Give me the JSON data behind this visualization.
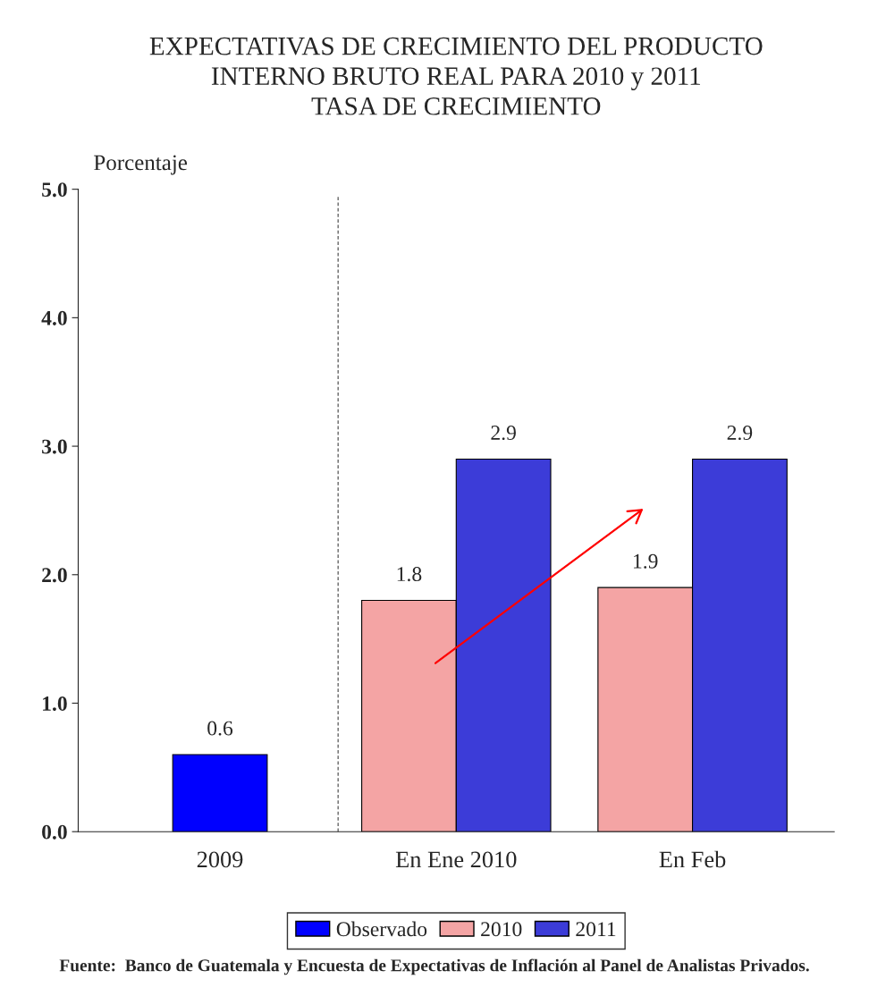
{
  "chart_data": {
    "type": "bar",
    "title": "EXPECTATIVAS DE CRECIMIENTO DEL PRODUCTO\nINTERNO BRUTO REAL PARA 2010 y 2011\nTASA DE CRECIMIENTO",
    "ylabel": "Porcentaje",
    "categories": [
      "2009",
      "En Ene 2010",
      "En Feb"
    ],
    "series": [
      {
        "name": "Observado",
        "color": "#0000ff",
        "values": [
          0.6,
          null,
          null
        ]
      },
      {
        "name": "2010",
        "color": "#f4a4a4",
        "values": [
          null,
          1.8,
          1.9
        ]
      },
      {
        "name": "2011",
        "color": "#3c3cd8",
        "values": [
          null,
          2.9,
          2.9
        ]
      }
    ],
    "ylim": [
      0,
      5
    ],
    "yticks": [
      {
        "value": 0,
        "label": "0.0"
      },
      {
        "value": 1,
        "label": "1.0"
      },
      {
        "value": 2,
        "label": "2.0"
      },
      {
        "value": 3,
        "label": "3.0"
      },
      {
        "value": 4,
        "label": "4.0"
      },
      {
        "value": 5,
        "label": "5.0"
      }
    ],
    "data_labels": true,
    "grid": false,
    "legend": "bottom",
    "annotations": [
      "Fuente:  Banco de Guatemala y Encuesta de Expectativas de Inflación al Panel de Analistas Privados."
    ]
  }
}
